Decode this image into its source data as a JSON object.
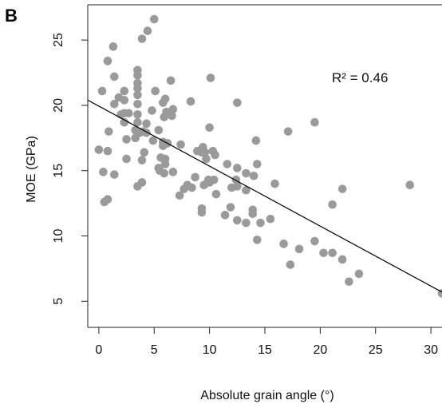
{
  "panel_label": "B",
  "chart_data": {
    "type": "scatter",
    "title": "",
    "xlabel": "Absolute grain angle (°)",
    "ylabel": "MOE (GPa)",
    "xlim": [
      -1,
      31
    ],
    "ylim": [
      3.0,
      27.7
    ],
    "xticks": [
      0,
      5,
      10,
      15,
      20,
      25,
      30
    ],
    "yticks": [
      5,
      10,
      15,
      20,
      25
    ],
    "grid": false,
    "annotation": "R² =  0.46",
    "point_color": "#9a9a9a",
    "regression_line": {
      "x": [
        -1,
        31
      ],
      "y": [
        20.4,
        5.7
      ]
    },
    "points": [
      [
        0.0,
        16.6
      ],
      [
        0.3,
        21.1
      ],
      [
        0.4,
        14.9
      ],
      [
        0.5,
        12.6
      ],
      [
        0.8,
        23.4
      ],
      [
        0.8,
        12.8
      ],
      [
        0.8,
        16.5
      ],
      [
        0.9,
        18.0
      ],
      [
        1.3,
        24.5
      ],
      [
        1.4,
        22.2
      ],
      [
        1.4,
        20.1
      ],
      [
        1.4,
        14.7
      ],
      [
        1.8,
        20.6
      ],
      [
        2.0,
        19.3
      ],
      [
        2.3,
        20.4
      ],
      [
        2.3,
        18.7
      ],
      [
        2.3,
        19.4
      ],
      [
        2.3,
        21.1
      ],
      [
        2.5,
        15.9
      ],
      [
        2.5,
        17.4
      ],
      [
        2.7,
        19.4
      ],
      [
        3.3,
        17.5
      ],
      [
        3.3,
        18.1
      ],
      [
        3.5,
        22.7
      ],
      [
        3.5,
        22.3
      ],
      [
        3.5,
        21.7
      ],
      [
        3.5,
        21.3
      ],
      [
        3.5,
        20.8
      ],
      [
        3.5,
        20.1
      ],
      [
        3.5,
        19.3
      ],
      [
        3.5,
        18.7
      ],
      [
        3.5,
        13.8
      ],
      [
        3.7,
        17.9
      ],
      [
        3.9,
        25.1
      ],
      [
        3.9,
        15.8
      ],
      [
        3.9,
        14.1
      ],
      [
        4.0,
        18.0
      ],
      [
        4.1,
        16.4
      ],
      [
        4.3,
        17.9
      ],
      [
        4.3,
        18.6
      ],
      [
        4.4,
        25.7
      ],
      [
        4.8,
        19.6
      ],
      [
        4.9,
        17.3
      ],
      [
        5.0,
        26.6
      ],
      [
        5.1,
        21.1
      ],
      [
        5.4,
        18.1
      ],
      [
        5.4,
        15.2
      ],
      [
        5.5,
        15.0
      ],
      [
        5.6,
        16.0
      ],
      [
        5.8,
        20.2
      ],
      [
        5.8,
        17.2
      ],
      [
        5.8,
        16.9
      ],
      [
        5.9,
        14.8
      ],
      [
        5.9,
        19.1
      ],
      [
        6.0,
        20.5
      ],
      [
        6.0,
        15.9
      ],
      [
        6.0,
        15.5
      ],
      [
        6.1,
        19.5
      ],
      [
        6.2,
        17.1
      ],
      [
        6.5,
        21.9
      ],
      [
        6.6,
        19.2
      ],
      [
        6.7,
        19.7
      ],
      [
        6.7,
        14.9
      ],
      [
        7.3,
        13.1
      ],
      [
        7.4,
        17.0
      ],
      [
        7.7,
        13.6
      ],
      [
        8.0,
        13.9
      ],
      [
        8.3,
        20.3
      ],
      [
        8.4,
        13.7
      ],
      [
        8.7,
        14.5
      ],
      [
        8.9,
        16.5
      ],
      [
        9.3,
        16.4
      ],
      [
        9.3,
        12.1
      ],
      [
        9.3,
        11.8
      ],
      [
        9.4,
        16.8
      ],
      [
        9.5,
        13.9
      ],
      [
        9.6,
        16.4
      ],
      [
        9.7,
        15.9
      ],
      [
        9.9,
        14.3
      ],
      [
        10.0,
        18.3
      ],
      [
        10.0,
        14.1
      ],
      [
        10.1,
        22.1
      ],
      [
        10.3,
        16.5
      ],
      [
        10.4,
        14.3
      ],
      [
        10.5,
        16.2
      ],
      [
        10.6,
        13.2
      ],
      [
        11.4,
        11.6
      ],
      [
        11.6,
        15.5
      ],
      [
        11.9,
        12.2
      ],
      [
        12.0,
        13.7
      ],
      [
        12.4,
        14.3
      ],
      [
        12.5,
        20.2
      ],
      [
        12.5,
        15.2
      ],
      [
        12.5,
        13.8
      ],
      [
        12.5,
        11.2
      ],
      [
        13.3,
        13.5
      ],
      [
        13.3,
        14.8
      ],
      [
        13.3,
        11.0
      ],
      [
        13.9,
        12.0
      ],
      [
        13.9,
        11.7
      ],
      [
        14.0,
        14.6
      ],
      [
        14.2,
        17.3
      ],
      [
        14.3,
        15.5
      ],
      [
        14.3,
        9.7
      ],
      [
        14.6,
        11.0
      ],
      [
        15.5,
        11.3
      ],
      [
        15.9,
        14.0
      ],
      [
        16.7,
        9.4
      ],
      [
        17.1,
        18.0
      ],
      [
        17.3,
        7.8
      ],
      [
        18.1,
        9.0
      ],
      [
        19.5,
        18.7
      ],
      [
        19.5,
        9.6
      ],
      [
        20.3,
        8.7
      ],
      [
        21.1,
        8.7
      ],
      [
        21.1,
        12.4
      ],
      [
        22.0,
        13.6
      ],
      [
        22.0,
        8.2
      ],
      [
        22.6,
        6.5
      ],
      [
        23.5,
        7.1
      ],
      [
        28.1,
        13.9
      ],
      [
        31.0,
        5.6
      ]
    ]
  }
}
